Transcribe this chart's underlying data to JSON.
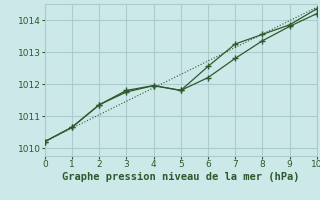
{
  "background_color": "#cce8e8",
  "grid_color": "#aacccc",
  "line_color": "#2d5a2d",
  "xlabel": "Graphe pression niveau de la mer (hPa)",
  "xlim": [
    0,
    10
  ],
  "ylim": [
    1009.75,
    1014.5
  ],
  "xticks": [
    0,
    1,
    2,
    3,
    4,
    5,
    6,
    7,
    8,
    9,
    10
  ],
  "yticks": [
    1010,
    1011,
    1012,
    1013,
    1014
  ],
  "line1_x": [
    0,
    1,
    2,
    3,
    4,
    5,
    6,
    7,
    8,
    9,
    10
  ],
  "line1_y": [
    1010.2,
    1010.65,
    1011.35,
    1011.75,
    1011.95,
    1011.8,
    1012.2,
    1012.8,
    1013.35,
    1013.8,
    1014.2
  ],
  "line2_x": [
    0,
    1,
    2,
    3,
    4,
    5,
    6,
    7,
    8,
    9,
    10
  ],
  "line2_y": [
    1010.2,
    1010.65,
    1011.35,
    1011.8,
    1011.95,
    1011.8,
    1012.55,
    1013.25,
    1013.55,
    1013.85,
    1014.35
  ],
  "line3_x": [
    0,
    10
  ],
  "line3_y": [
    1010.2,
    1014.4
  ],
  "xlabel_color": "#2d5a2d",
  "xlabel_fontsize": 7.5,
  "tick_fontsize": 6.5
}
